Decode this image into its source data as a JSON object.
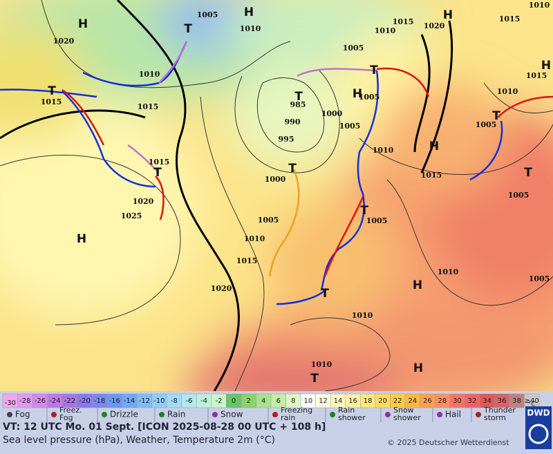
{
  "map": {
    "isobar_labels": [
      "1005",
      "1010",
      "1015",
      "1020",
      "1010",
      "1015",
      "1020",
      "1010",
      "1005",
      "1010",
      "1015",
      "1010",
      "1015",
      "1015",
      "985",
      "990",
      "1000",
      "1005",
      "1005",
      "995",
      "1005",
      "1010",
      "1015",
      "1015",
      "1000",
      "1020",
      "1025",
      "1005",
      "1005",
      "1005",
      "1010",
      "1015",
      "1010",
      "1005",
      "1020",
      "1010",
      "1010"
    ],
    "pressure_centers": [
      "H",
      "H",
      "H",
      "T",
      "T",
      "T",
      "H",
      "T",
      "T",
      "H",
      "T",
      "T",
      "T",
      "H",
      "T",
      "H",
      "T",
      "H",
      "T",
      "H"
    ]
  },
  "legend": {
    "temperature_scale": {
      "low_marker": "<",
      "cells": [
        {
          "label": "-30",
          "color": "#f0a8f0"
        },
        {
          "label": "-28",
          "color": "#e498f0"
        },
        {
          "label": "-26",
          "color": "#d488ec"
        },
        {
          "label": "-24",
          "color": "#c078e6"
        },
        {
          "label": "-22",
          "color": "#a874e4"
        },
        {
          "label": "-20",
          "color": "#8878e8"
        },
        {
          "label": "-18",
          "color": "#7888f0"
        },
        {
          "label": "-16",
          "color": "#6c98f4"
        },
        {
          "label": "-14",
          "color": "#70a8f8"
        },
        {
          "label": "-12",
          "color": "#80bcf8"
        },
        {
          "label": "-10",
          "color": "#90ccf8"
        },
        {
          "label": "-8",
          "color": "#a0dcf4"
        },
        {
          "label": "-6",
          "color": "#b0e8ee"
        },
        {
          "label": "-4",
          "color": "#c0f0dc"
        },
        {
          "label": "-2",
          "color": "#c8f4c8"
        },
        {
          "label": "0",
          "color": "#68c468"
        },
        {
          "label": "2",
          "color": "#88d468"
        },
        {
          "label": "4",
          "color": "#a8e288"
        },
        {
          "label": "6",
          "color": "#c4eea4"
        },
        {
          "label": "8",
          "color": "#e0f6c4"
        },
        {
          "label": "10",
          "color": "#ffffff"
        },
        {
          "label": "12",
          "color": "#fffde0"
        },
        {
          "label": "14",
          "color": "#fff8c0"
        },
        {
          "label": "16",
          "color": "#fff0a0"
        },
        {
          "label": "18",
          "color": "#ffe880"
        },
        {
          "label": "20",
          "color": "#ffdc60"
        },
        {
          "label": "22",
          "color": "#ffcc48"
        },
        {
          "label": "24",
          "color": "#ffb840"
        },
        {
          "label": "26",
          "color": "#ffa050"
        },
        {
          "label": "28",
          "color": "#ff9060"
        },
        {
          "label": "30",
          "color": "#f87464"
        },
        {
          "label": "32",
          "color": "#f06464"
        },
        {
          "label": "34",
          "color": "#e45858"
        },
        {
          "label": "36",
          "color": "#d46464"
        },
        {
          "label": "38",
          "color": "#c08080"
        },
        {
          "label": "≥40",
          "color": "#c8c8c8"
        }
      ],
      "unit": "°C"
    },
    "weather_symbols": [
      "Fog",
      "Freez. Fog",
      "Drizzle",
      "Rain",
      "Snow",
      "Freezing rain",
      "Rain shower",
      "Snow shower",
      "Hail",
      "Thunder storm"
    ]
  },
  "footer": {
    "valid_time": "VT: 12 UTC Mo.  01 Sept. [ICON 2025-08-28  00 UTC + 108 h]",
    "description": "Sea level pressure (hPa), Weather, Temperature 2m (°C)",
    "copyright": "© 2025 Deutscher Wetterdienst",
    "logo": "DWD"
  }
}
